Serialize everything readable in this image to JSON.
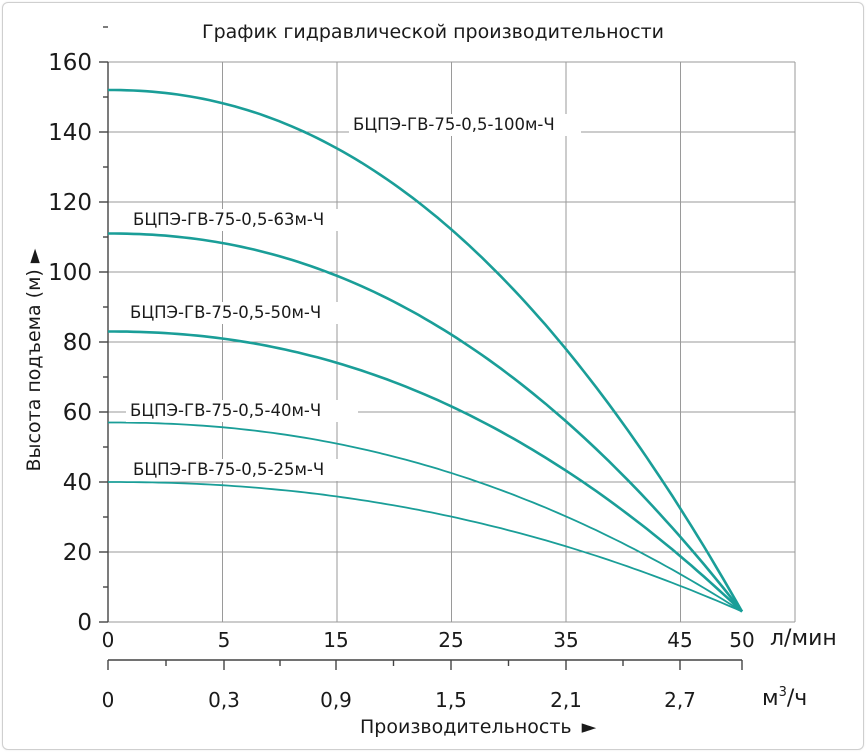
{
  "chart_data": {
    "type": "line",
    "title": "График гидравлической производительности",
    "ylabel": "Высота подъема (м)",
    "xlabel": "Производительность",
    "ylim": [
      0,
      160
    ],
    "yticks": [
      "0",
      "20",
      "40",
      "60",
      "80",
      "100",
      "120",
      "140",
      "160"
    ],
    "x_units_primary": "л/мин",
    "x_ticks_primary": [
      "0",
      "5",
      "15",
      "25",
      "35",
      "45",
      "50"
    ],
    "x_units_secondary": "м³/ч",
    "x_ticks_secondary": [
      "0",
      "0,3",
      "0,9",
      "1,5",
      "2,1",
      "2,7"
    ],
    "x_units_secondary_base": "м",
    "x_units_secondary_sup": "3",
    "x_units_secondary_tail": "/ч",
    "grid": true,
    "series": [
      {
        "name": "БЦПЭ-ГВ-75-0,5-100м-Ч",
        "x": [
          0,
          5,
          15,
          25,
          35,
          45,
          50
        ],
        "y": [
          152,
          150,
          134,
          113,
          83,
          38,
          3
        ]
      },
      {
        "name": "БЦПЭ-ГВ-75-0,5-63м-Ч",
        "x": [
          0,
          5,
          15,
          25,
          35,
          45,
          50
        ],
        "y": [
          111,
          108,
          99,
          84,
          62,
          30,
          3
        ]
      },
      {
        "name": "БЦПЭ-ГВ-75-0,5-50м-Ч",
        "x": [
          0,
          5,
          15,
          25,
          35,
          45,
          50
        ],
        "y": [
          83,
          81,
          74,
          64,
          48,
          23,
          3
        ]
      },
      {
        "name": "БЦПЭ-ГВ-75-0,5-40м-Ч",
        "x": [
          0,
          5,
          15,
          25,
          35,
          45,
          50
        ],
        "y": [
          57,
          56,
          51,
          44,
          33,
          16,
          3
        ]
      },
      {
        "name": "БЦПЭ-ГВ-75-0,5-25м-Ч",
        "x": [
          0,
          5,
          15,
          25,
          35,
          45,
          50
        ],
        "y": [
          40,
          39,
          36,
          31,
          24,
          13,
          3
        ]
      }
    ],
    "line_color": "#1a9e98"
  }
}
